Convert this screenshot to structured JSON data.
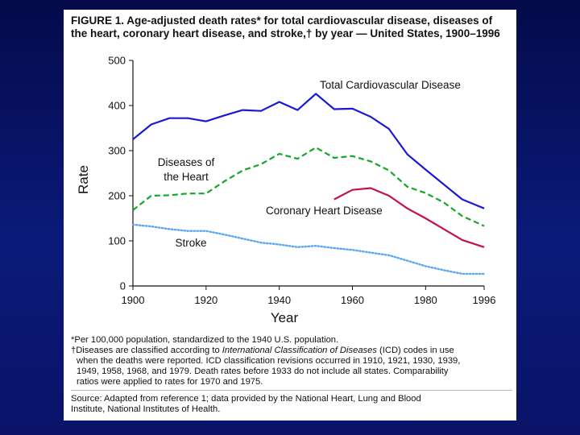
{
  "figure": {
    "title_line1": "FIGURE 1. Age-adjusted death rates* for total cardiovascular disease, diseases of",
    "title_line2": "the heart, coronary heart disease, and stroke,† by year — United States, 1900–1996"
  },
  "chart_data": {
    "type": "line",
    "xlabel": "Year",
    "ylabel": "Rate",
    "xlim": [
      1900,
      1996
    ],
    "ylim": [
      0,
      500
    ],
    "x_ticks": [
      "1900",
      "1920",
      "1940",
      "1960",
      "1980",
      "1996"
    ],
    "y_ticks": [
      "0",
      "100",
      "200",
      "300",
      "400",
      "500"
    ],
    "grid": false,
    "legend": "inline labels",
    "series": [
      {
        "name": "Total Cardiovascular Disease",
        "label_lines": [
          "Total Cardiovascular Disease"
        ],
        "color": "#1a1ad6",
        "style": "solid",
        "points": [
          [
            1900,
            325
          ],
          [
            1905,
            358
          ],
          [
            1910,
            372
          ],
          [
            1915,
            372
          ],
          [
            1920,
            365
          ],
          [
            1925,
            378
          ],
          [
            1930,
            390
          ],
          [
            1935,
            388
          ],
          [
            1940,
            408
          ],
          [
            1945,
            390
          ],
          [
            1950,
            426
          ],
          [
            1955,
            392
          ],
          [
            1960,
            393
          ],
          [
            1965,
            375
          ],
          [
            1970,
            348
          ],
          [
            1975,
            292
          ],
          [
            1980,
            258
          ],
          [
            1985,
            225
          ],
          [
            1990,
            192
          ],
          [
            1996,
            172
          ]
        ]
      },
      {
        "name": "Diseases of the Heart",
        "label_lines": [
          "Diseases of",
          "the Heart"
        ],
        "color": "#14a828",
        "style": "dashed",
        "points": [
          [
            1900,
            168
          ],
          [
            1905,
            200
          ],
          [
            1910,
            201
          ],
          [
            1915,
            205
          ],
          [
            1920,
            205
          ],
          [
            1925,
            232
          ],
          [
            1930,
            256
          ],
          [
            1935,
            270
          ],
          [
            1940,
            293
          ],
          [
            1945,
            282
          ],
          [
            1950,
            307
          ],
          [
            1955,
            284
          ],
          [
            1960,
            288
          ],
          [
            1965,
            276
          ],
          [
            1970,
            256
          ],
          [
            1975,
            220
          ],
          [
            1980,
            206
          ],
          [
            1985,
            185
          ],
          [
            1990,
            155
          ],
          [
            1996,
            133
          ]
        ]
      },
      {
        "name": "Coronary Heart Disease",
        "label_lines": [
          "Coronary Heart Disease"
        ],
        "color": "#c4104e",
        "style": "solid",
        "points": [
          [
            1955,
            192
          ],
          [
            1960,
            213
          ],
          [
            1965,
            217
          ],
          [
            1970,
            200
          ],
          [
            1975,
            172
          ],
          [
            1980,
            150
          ],
          [
            1985,
            126
          ],
          [
            1990,
            102
          ],
          [
            1996,
            86
          ]
        ]
      },
      {
        "name": "Stroke",
        "label_lines": [
          "Stroke"
        ],
        "color": "#5aa8f0",
        "style": "dotted",
        "points": [
          [
            1900,
            136
          ],
          [
            1905,
            132
          ],
          [
            1910,
            126
          ],
          [
            1915,
            122
          ],
          [
            1920,
            122
          ],
          [
            1925,
            114
          ],
          [
            1930,
            105
          ],
          [
            1935,
            96
          ],
          [
            1940,
            92
          ],
          [
            1945,
            86
          ],
          [
            1950,
            89
          ],
          [
            1955,
            84
          ],
          [
            1960,
            80
          ],
          [
            1965,
            74
          ],
          [
            1970,
            68
          ],
          [
            1975,
            56
          ],
          [
            1980,
            44
          ],
          [
            1985,
            35
          ],
          [
            1990,
            27
          ],
          [
            1996,
            27
          ]
        ]
      }
    ]
  },
  "footnotes": {
    "line1": "*Per 100,000 population, standardized to the 1940 U.S. population.",
    "line2_pre": "†Diseases are classified according to ",
    "line2_em": "International Classification of Diseases",
    "line2_post": " (ICD) codes in use",
    "line3": "when the deaths were reported. ICD classification revisions occurred in 1910, 1921, 1930, 1939,",
    "line4": "1949, 1958, 1968, and 1979. Death rates before 1933 do not include all states. Comparability",
    "line5": "ratios were applied to rates for 1970 and 1975."
  },
  "source": {
    "line1": "Source: Adapted from reference 1; data provided by the National Heart, Lung and Blood",
    "line2": "Institute, National Institutes of Health."
  }
}
